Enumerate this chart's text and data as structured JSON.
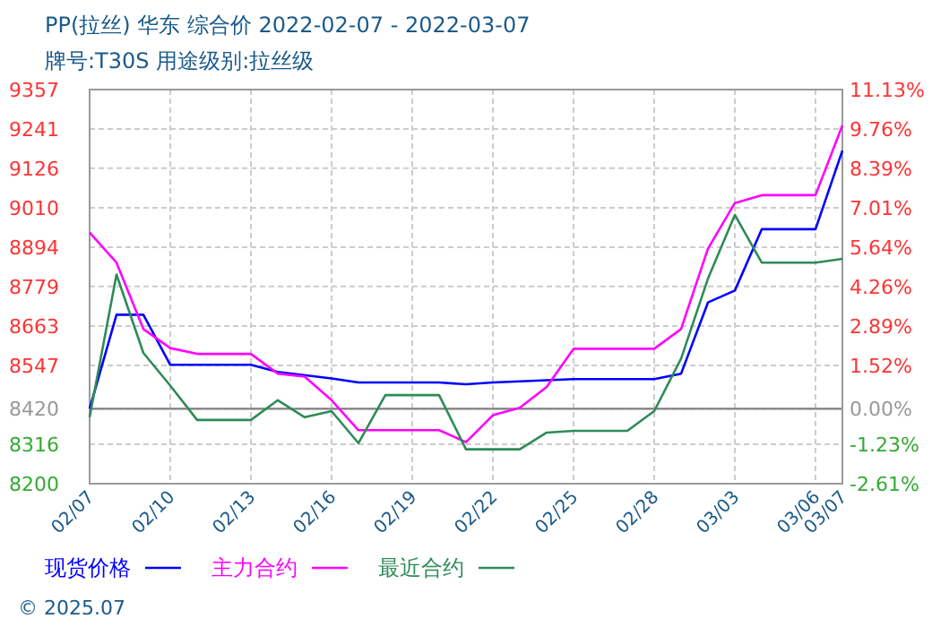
{
  "chart_data": {
    "type": "line",
    "title": "PP(拉丝) 华东 综合价 2022-02-07 - 2022-03-07",
    "subtitle": "牌号:T30S 用途级别:拉丝级",
    "xlim": [
      "2022-02-07",
      "2022-03-07"
    ],
    "xticks": [
      {
        "value": "2022-02-07",
        "label": "02/07"
      },
      {
        "value": "2022-02-10",
        "label": "02/10"
      },
      {
        "value": "2022-02-13",
        "label": "02/13"
      },
      {
        "value": "2022-02-16",
        "label": "02/16"
      },
      {
        "value": "2022-02-19",
        "label": "02/19"
      },
      {
        "value": "2022-02-22",
        "label": "02/22"
      },
      {
        "value": "2022-02-25",
        "label": "02/25"
      },
      {
        "value": "2022-02-28",
        "label": "02/28"
      },
      {
        "value": "2022-03-03",
        "label": "03/03"
      },
      {
        "value": "2022-03-06",
        "label": "03/06"
      },
      {
        "value": "2022-03-07",
        "label": "03/07"
      }
    ],
    "ylim": [
      8200,
      9357
    ],
    "yticks": [
      8200,
      8316,
      8420,
      8547,
      8663,
      8779,
      8894,
      9010,
      9126,
      9241,
      9357
    ],
    "y2lim": [
      -2.61,
      11.13
    ],
    "y2ticks": [
      {
        "value": -2.61,
        "label": "-2.61%"
      },
      {
        "value": -1.23,
        "label": "-1.23%"
      },
      {
        "value": 0,
        "label": "0.00%"
      },
      {
        "value": 1.52,
        "label": "1.52%"
      },
      {
        "value": 2.89,
        "label": "2.89%"
      },
      {
        "value": 4.26,
        "label": "4.26%"
      },
      {
        "value": 5.64,
        "label": "5.64%"
      },
      {
        "value": 7.01,
        "label": "7.01%"
      },
      {
        "value": 8.39,
        "label": "8.39%"
      },
      {
        "value": 9.76,
        "label": "9.76%"
      },
      {
        "value": 11.13,
        "label": "11.13%"
      }
    ],
    "ref_lines": [
      {
        "axis": "y",
        "value": 8420,
        "color": "#808080"
      }
    ],
    "grid": true,
    "legend": "bottom",
    "line_style": "solid",
    "marker": "none",
    "annotations": [
      "© 2025.07"
    ],
    "series": [
      {
        "name": "现货价格",
        "color": "#0000ff",
        "x": [
          "2022-02-07",
          "2022-02-08",
          "2022-02-09",
          "2022-02-10",
          "2022-02-13",
          "2022-02-14",
          "2022-02-16",
          "2022-02-17",
          "2022-02-20",
          "2022-02-21",
          "2022-02-22",
          "2022-02-25",
          "2022-02-28",
          "2022-03-01",
          "2022-03-02",
          "2022-03-03",
          "2022-03-04",
          "2022-03-06",
          "2022-03-07"
        ],
        "values": [
          8420,
          8696,
          8696,
          8549,
          8549,
          8528,
          8509,
          8497,
          8497,
          8492,
          8497,
          8507,
          8507,
          8523,
          8732,
          8767,
          8947,
          8947,
          9178
        ]
      },
      {
        "name": "主力合约",
        "color": "#ff00ff",
        "x": [
          "2022-02-07",
          "2022-02-08",
          "2022-02-09",
          "2022-02-10",
          "2022-02-11",
          "2022-02-13",
          "2022-02-14",
          "2022-02-15",
          "2022-02-16",
          "2022-02-17",
          "2022-02-20",
          "2022-02-21",
          "2022-02-22",
          "2022-02-23",
          "2022-02-24",
          "2022-02-25",
          "2022-02-28",
          "2022-03-01",
          "2022-03-02",
          "2022-03-03",
          "2022-03-04",
          "2022-03-06",
          "2022-03-07"
        ],
        "values": [
          8937,
          8849,
          8654,
          8598,
          8581,
          8581,
          8523,
          8514,
          8445,
          8357,
          8357,
          8322,
          8401,
          8423,
          8484,
          8596,
          8596,
          8654,
          8890,
          9024,
          9047,
          9047,
          9252
        ]
      },
      {
        "name": "最近合约",
        "color": "#2e8b57",
        "x": [
          "2022-02-07",
          "2022-02-08",
          "2022-02-09",
          "2022-02-10",
          "2022-02-11",
          "2022-02-13",
          "2022-02-14",
          "2022-02-15",
          "2022-02-16",
          "2022-02-17",
          "2022-02-18",
          "2022-02-20",
          "2022-02-21",
          "2022-02-23",
          "2022-02-24",
          "2022-02-25",
          "2022-02-27",
          "2022-02-28",
          "2022-03-01",
          "2022-03-02",
          "2022-03-03",
          "2022-03-04",
          "2022-03-06",
          "2022-03-07"
        ],
        "values": [
          8395,
          8814,
          8584,
          8488,
          8387,
          8387,
          8445,
          8395,
          8413,
          8319,
          8460,
          8460,
          8301,
          8301,
          8350,
          8355,
          8355,
          8413,
          8567,
          8802,
          8989,
          8849,
          8849,
          8860
        ]
      }
    ]
  }
}
